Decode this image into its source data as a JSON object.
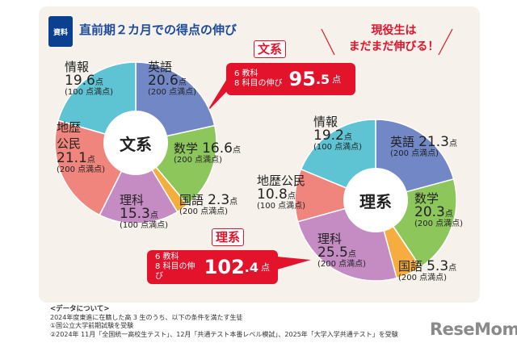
{
  "header": {
    "badge": "資料",
    "title": "直前期２カ月での得点の伸び",
    "slogan_line1": "現役生は",
    "slogan_line2": "まだまだ伸びる！"
  },
  "chart_data": [
    {
      "type": "pie",
      "center_label": "文系",
      "tag": "文系",
      "callout": {
        "line1": "6 教科",
        "line2": "8 科目の伸び",
        "total_int": "95",
        "total_dec": ".5",
        "unit": "点"
      },
      "slices": [
        {
          "name": "英語",
          "value": 20.6,
          "value_text": "20.6",
          "max": "(200 点満点)",
          "color": "#7288c6"
        },
        {
          "name": "数学",
          "value": 16.6,
          "value_text": "16.6",
          "max": "(200 点満点)",
          "color": "#8dc65b"
        },
        {
          "name": "国語",
          "value": 2.3,
          "value_text": "2.3",
          "max": "(200 点満点)",
          "color": "#f6ad3f"
        },
        {
          "name": "理科",
          "value": 15.3,
          "value_text": "15.3",
          "max": "(100 点満点)",
          "color": "#c48cc2"
        },
        {
          "name": "地歴公民",
          "value": 21.1,
          "value_text": "21.1",
          "max": "(200 点満点)",
          "color": "#ef857c"
        },
        {
          "name": "情報",
          "value": 19.6,
          "value_text": "19.6",
          "max": "(100 点満点)",
          "color": "#5ec3d3"
        }
      ]
    },
    {
      "type": "pie",
      "center_label": "理系",
      "tag": "理系",
      "callout": {
        "line1": "6 教科",
        "line2": "8 科目の伸び",
        "total_int": "102",
        "total_dec": ".4",
        "unit": "点"
      },
      "slices": [
        {
          "name": "英語",
          "value": 21.3,
          "value_text": "21.3",
          "max": "(200 点満点)",
          "color": "#7288c6"
        },
        {
          "name": "数学",
          "value": 20.3,
          "value_text": "20.3",
          "max": "(200 点満点)",
          "color": "#8dc65b"
        },
        {
          "name": "国語",
          "value": 5.3,
          "value_text": "5.3",
          "max": "(200 点満点)",
          "color": "#f6ad3f"
        },
        {
          "name": "理科",
          "value": 25.5,
          "value_text": "25.5",
          "max": "(200 点満点)",
          "color": "#c48cc2"
        },
        {
          "name": "地歴公民",
          "value": 10.8,
          "value_text": "10.8",
          "max": "(100 点満点)",
          "color": "#ef857c"
        },
        {
          "name": "情報",
          "value": 19.2,
          "value_text": "19.2",
          "max": "(100 点満点)",
          "color": "#5ec3d3"
        }
      ]
    }
  ],
  "point_unit": "点",
  "footer": {
    "heading": "<データについて>",
    "line1": "2024年度東進に在籍した高 3 生のうち、以下の条件を満たす生徒",
    "line2": "①国公立大学前期試験を受験",
    "line3": "②2024年 11月「全国統一高校生テスト」、12月「共通テスト本番レベル模試」、2025年「大学入学共通テスト」を受験"
  },
  "logo": "ReseMom"
}
